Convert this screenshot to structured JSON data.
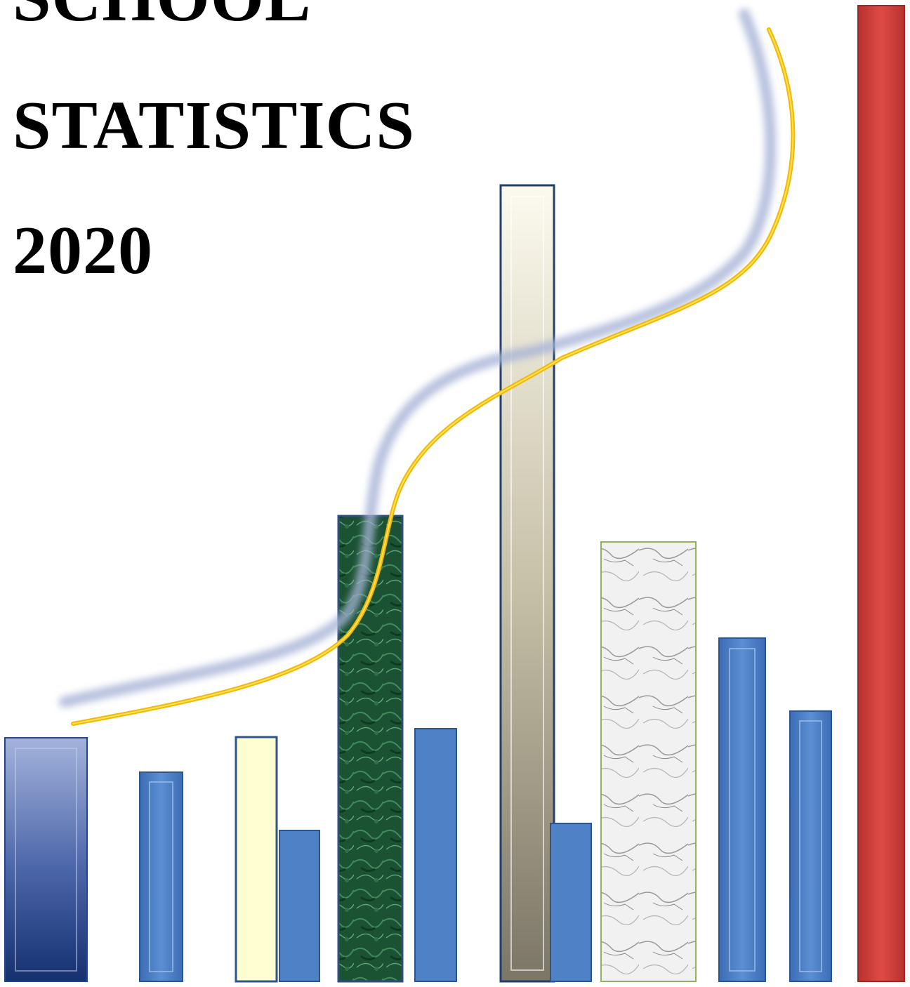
{
  "title": {
    "line1": "SCHOOL",
    "line2": "STATISTICS",
    "line3": "2020"
  },
  "colors": {
    "title_text": "#000000",
    "bar_blue": "#4f81c7",
    "bar_navy": "#1f3f86",
    "bar_green_marble": "#1f5a38",
    "bar_pale_yellow": "#fffed0",
    "bar_beige": "#c8c2a8",
    "bar_white_marble": "#ececec",
    "bar_red": "#d0403d",
    "trend_line": "#f5c400",
    "trend_shadow": "#a6b3d6"
  }
}
